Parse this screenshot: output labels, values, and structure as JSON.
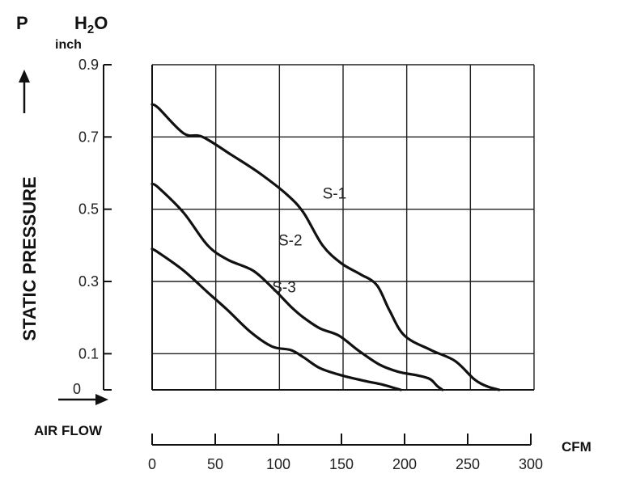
{
  "chart_data": {
    "type": "line",
    "title": "",
    "header": {
      "p_symbol": "P",
      "unit": "H2O",
      "unit_prefix": "H",
      "unit_sub": "2",
      "unit_suffix": "O",
      "inch": "inch"
    },
    "ylabel": "STATIC PRESSURE",
    "xlabel": "AIR FLOW",
    "xunit": "CFM",
    "ylim": [
      0,
      0.9
    ],
    "xlim": [
      0,
      300
    ],
    "y_ticks": [
      0.1,
      0.3,
      0.5,
      0.7,
      0.9
    ],
    "y_tick_labels": [
      "0.1",
      "0.3",
      "0.5",
      "0.7",
      "0.9"
    ],
    "y_zero_label": "0",
    "x_ticks": [
      0,
      50,
      100,
      150,
      200,
      250,
      300
    ],
    "x_tick_labels": [
      "0",
      "50",
      "100",
      "150",
      "200",
      "250",
      "300"
    ],
    "grid": true,
    "series": [
      {
        "name": "S-1",
        "points": [
          [
            0,
            0.79
          ],
          [
            5,
            0.78
          ],
          [
            25,
            0.71
          ],
          [
            40,
            0.7
          ],
          [
            63,
            0.65
          ],
          [
            85,
            0.6
          ],
          [
            107,
            0.54
          ],
          [
            120,
            0.49
          ],
          [
            135,
            0.4
          ],
          [
            150,
            0.35
          ],
          [
            165,
            0.32
          ],
          [
            178,
            0.29
          ],
          [
            188,
            0.22
          ],
          [
            200,
            0.15
          ],
          [
            221,
            0.11
          ],
          [
            240,
            0.08
          ],
          [
            255,
            0.03
          ],
          [
            265,
            0.01
          ],
          [
            275,
            0.0
          ]
        ]
      },
      {
        "name": "S-2",
        "points": [
          [
            0,
            0.57
          ],
          [
            5,
            0.56
          ],
          [
            25,
            0.49
          ],
          [
            44,
            0.4
          ],
          [
            60,
            0.36
          ],
          [
            80,
            0.33
          ],
          [
            96,
            0.28
          ],
          [
            110,
            0.23
          ],
          [
            120,
            0.2
          ],
          [
            133,
            0.17
          ],
          [
            148,
            0.15
          ],
          [
            163,
            0.11
          ],
          [
            180,
            0.07
          ],
          [
            195,
            0.05
          ],
          [
            210,
            0.04
          ],
          [
            220,
            0.03
          ],
          [
            226,
            0.01
          ],
          [
            230,
            0.0
          ]
        ]
      },
      {
        "name": "S-3",
        "points": [
          [
            0,
            0.39
          ],
          [
            5,
            0.38
          ],
          [
            25,
            0.33
          ],
          [
            44,
            0.27
          ],
          [
            60,
            0.22
          ],
          [
            78,
            0.16
          ],
          [
            95,
            0.12
          ],
          [
            110,
            0.11
          ],
          [
            120,
            0.09
          ],
          [
            133,
            0.06
          ],
          [
            150,
            0.04
          ],
          [
            168,
            0.025
          ],
          [
            182,
            0.015
          ],
          [
            192,
            0.005
          ],
          [
            197,
            0.0
          ]
        ]
      }
    ]
  }
}
